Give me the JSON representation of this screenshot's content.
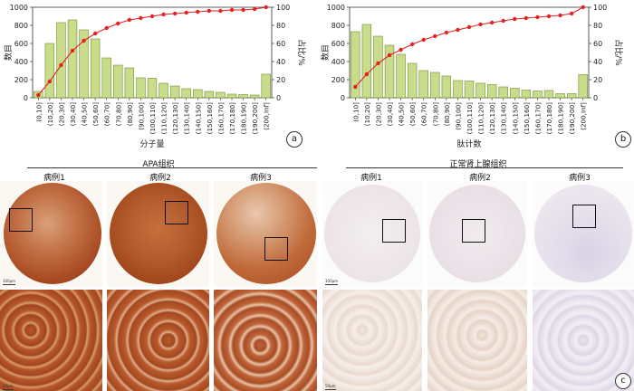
{
  "figure": {
    "panel_labels": [
      "a",
      "b",
      "c"
    ],
    "left_group": {
      "title": "APA组织",
      "cases": [
        "病例1",
        "病例2",
        "病例3"
      ]
    },
    "right_group": {
      "title": "正常肾上腺组织",
      "cases": [
        "病例1",
        "病例2",
        "病例3"
      ]
    },
    "scale_labels": [
      "100μm",
      "50μm"
    ],
    "colors": {
      "bar_fill": "#c8dc8c",
      "bar_stroke": "#6f8f2a",
      "line": "#e52222",
      "stain_positive": "#b5532a",
      "stain_negative": "#efe8ee"
    }
  },
  "chart_data": [
    {
      "type": "bar",
      "categories": [
        "(0,10]",
        "(10,20]",
        "(20,30]",
        "(30,40]",
        "(40,50]",
        "(50,60]",
        "(60,70]",
        "(70,80]",
        "(80,90]",
        "(90,100]",
        "(100,110]",
        "(110,120]",
        "(120,130]",
        "(130,140]",
        "(140,150]",
        "(150,160]",
        "(160,170]",
        "(170,180]",
        "(180,190]",
        "(190,200]",
        "(200,Inf]"
      ],
      "values": [
        70,
        600,
        830,
        860,
        750,
        650,
        440,
        360,
        330,
        220,
        215,
        160,
        130,
        100,
        90,
        70,
        60,
        40,
        35,
        30,
        260
      ],
      "line_values": [
        3,
        18,
        36,
        52,
        63,
        71,
        77,
        82,
        86,
        88,
        90,
        92,
        93,
        94,
        95,
        96,
        96,
        97,
        97,
        98,
        100
      ],
      "xlabel": "分子量",
      "ylabel": "数目",
      "y2label": "占比/%",
      "ylim": [
        0,
        1000
      ],
      "y2lim": [
        0,
        100
      ],
      "yticks": [
        0,
        200,
        400,
        600,
        800,
        1000
      ],
      "y2ticks": [
        0,
        20,
        40,
        60,
        80,
        100
      ]
    },
    {
      "type": "bar",
      "categories": [
        "(0,10]",
        "(10,20]",
        "(20,30]",
        "(30,40]",
        "(40,50]",
        "(50,60]",
        "(60,70]",
        "(70,80]",
        "(80,90]",
        "(90,100]",
        "(100,110]",
        "(110,120]",
        "(120,130]",
        "(130,140]",
        "(140,150]",
        "(150,160]",
        "(160,170]",
        "(170,180]",
        "(180,190]",
        "(190,200]",
        "(200,Inf]"
      ],
      "values": [
        730,
        810,
        680,
        580,
        480,
        380,
        300,
        280,
        240,
        190,
        185,
        160,
        145,
        120,
        105,
        85,
        75,
        80,
        45,
        45,
        255
      ],
      "line_values": [
        12,
        26,
        38,
        47,
        53,
        59,
        64,
        68,
        72,
        75,
        78,
        81,
        83,
        85,
        87,
        88,
        89,
        90,
        91,
        93,
        100
      ],
      "xlabel": "肽计数",
      "ylabel": "数目",
      "y2label": "占比/%",
      "ylim": [
        0,
        1000
      ],
      "y2lim": [
        0,
        100
      ],
      "yticks": [
        0,
        200,
        400,
        600,
        800,
        1000
      ],
      "y2ticks": [
        0,
        20,
        40,
        60,
        80,
        100
      ]
    }
  ]
}
